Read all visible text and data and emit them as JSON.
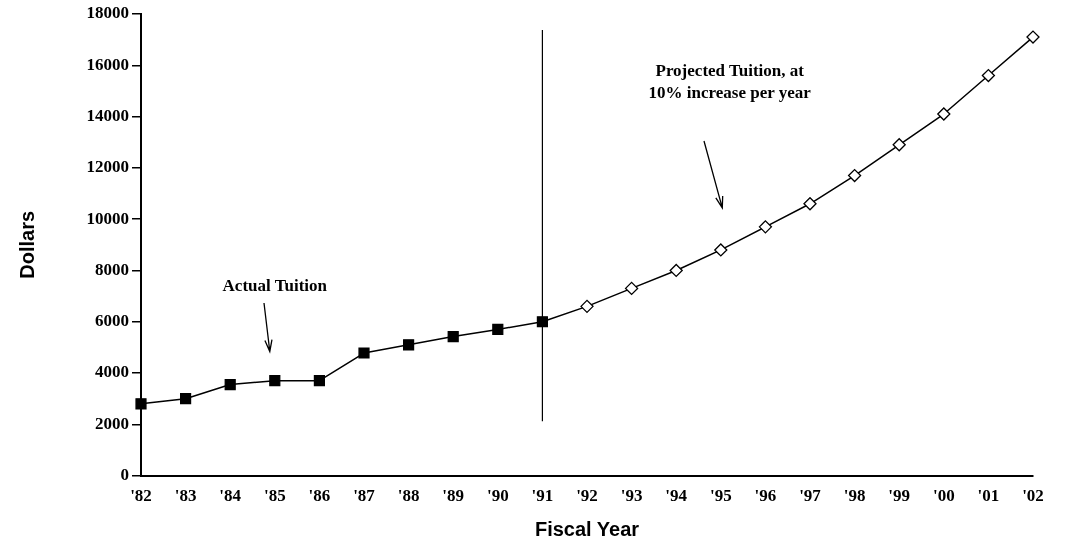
{
  "chart_data": {
    "type": "line",
    "xlabel": "Fiscal Year",
    "ylabel": "Dollars",
    "categories": [
      "'82",
      "'83",
      "'84",
      "'85",
      "'86",
      "'87",
      "'88",
      "'89",
      "'90",
      "'91",
      "'92",
      "'93",
      "'94",
      "'95",
      "'96",
      "'97",
      "'98",
      "'99",
      "'00",
      "'01",
      "'02"
    ],
    "series": [
      {
        "color": "#000000",
        "marker": "square",
        "values": [
          2800,
          3000,
          3550,
          3700,
          3700,
          4780,
          5100,
          5420,
          5700,
          6000,
          null,
          null,
          null,
          null,
          null,
          null,
          null,
          null,
          null,
          null,
          null
        ]
      },
      {
        "color": "#000000",
        "marker": "diamond",
        "values": [
          null,
          null,
          null,
          null,
          null,
          null,
          null,
          null,
          null,
          6000,
          6600,
          7300,
          8000,
          8800,
          9700,
          10600,
          11700,
          12900,
          14100,
          15600,
          17100
        ]
      }
    ],
    "ylim": [
      0,
      18000
    ],
    "yticks": [
      0,
      2000,
      4000,
      6000,
      8000,
      10000,
      12000,
      14000,
      16000,
      18000
    ],
    "grid": false,
    "legend": false,
    "ref_lines": [
      {
        "axis": "x",
        "value": "'91",
        "color": "#000000"
      }
    ],
    "annotations": [
      "Actual Tuition",
      "Projected Tuition, at\n10% increase per year"
    ]
  }
}
